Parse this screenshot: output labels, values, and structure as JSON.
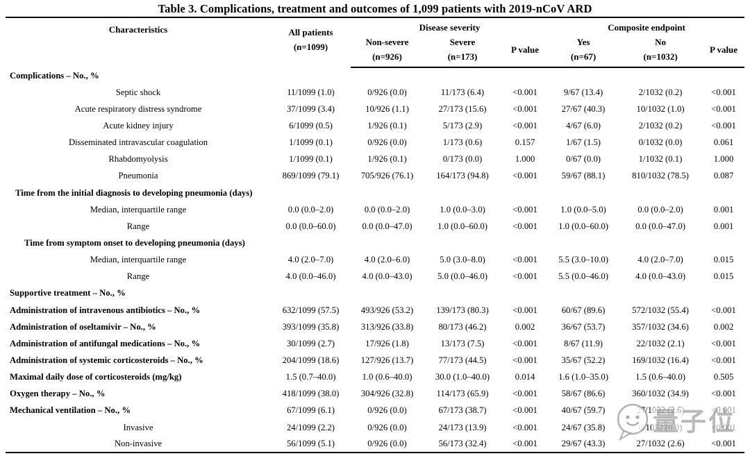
{
  "title": "Table 3. Complications, treatment and outcomes of 1,099 patients with 2019-nCoV ARD",
  "header": {
    "characteristics": "Characteristics",
    "all_patients": "All patients",
    "all_patients_n": "(n=1099)",
    "disease_severity": "Disease severity",
    "composite_endpoint": "Composite endpoint",
    "non_severe": "Non-severe",
    "non_severe_n": "(n=926)",
    "severe": "Severe",
    "severe_n": "(n=173)",
    "p_value_severity": "P value",
    "yes": "Yes",
    "yes_n": "(n=67)",
    "no": "No",
    "no_n": "(n=1032)",
    "p_value_composite": "P value"
  },
  "rows": [
    {
      "label": "Complications – No., %",
      "style": "head1",
      "values": [
        "",
        "",
        "",
        "",
        "",
        "",
        ""
      ]
    },
    {
      "label": "Septic shock",
      "style": "item",
      "values": [
        "11/1099 (1.0)",
        "0/926 (0.0)",
        "11/173 (6.4)",
        "<0.001",
        "9/67 (13.4)",
        "2/1032 (0.2)",
        "<0.001"
      ]
    },
    {
      "label": "Acute respiratory distress syndrome",
      "style": "item",
      "values": [
        "37/1099 (3.4)",
        "10/926 (1.1)",
        "27/173 (15.6)",
        "<0.001",
        "27/67 (40.3)",
        "10/1032 (1.0)",
        "<0.001"
      ]
    },
    {
      "label": "Acute kidney injury",
      "style": "item",
      "values": [
        "6/1099 (0.5)",
        "1/926 (0.1)",
        "5/173 (2.9)",
        "<0.001",
        "4/67 (6.0)",
        "2/1032 (0.2)",
        "<0.001"
      ]
    },
    {
      "label": "Disseminated intravascular coagulation",
      "style": "item",
      "values": [
        "1/1099 (0.1)",
        "0/926 (0.0)",
        "1/173 (0.6)",
        "0.157",
        "1/67 (1.5)",
        "0/1032 (0.0)",
        "0.061"
      ]
    },
    {
      "label": "Rhabdomyolysis",
      "style": "item",
      "values": [
        "1/1099 (0.1)",
        "1/926 (0.1)",
        "0/173 (0.0)",
        "1.000",
        "0/67 (0.0)",
        "1/1032 (0.1)",
        "1.000"
      ]
    },
    {
      "label": "Pneumonia",
      "style": "item",
      "values": [
        "869/1099 (79.1)",
        "705/926 (76.1)",
        "164/173 (94.8)",
        "<0.001",
        "59/67 (88.1)",
        "810/1032 (78.5)",
        "0.087"
      ]
    },
    {
      "label": "Time from the initial diagnosis to developing pneumonia (days)",
      "style": "head2",
      "values": [
        "",
        "",
        "",
        "",
        "",
        "",
        ""
      ]
    },
    {
      "label": "Median, interquartile range",
      "style": "item",
      "values": [
        "0.0 (0.0–2.0)",
        "0.0 (0.0–2.0)",
        "1.0 (0.0–3.0)",
        "<0.001",
        "1.0 (0.0–5.0)",
        "0.0 (0.0–2.0)",
        "0.001"
      ]
    },
    {
      "label": "Range",
      "style": "item",
      "values": [
        "0.0 (0.0–60.0)",
        "0.0 (0.0–47.0)",
        "1.0 (0.0–60.0)",
        "<0.001",
        "1.0 (0.0–60.0)",
        "0.0 (0.0–47.0)",
        "0.001"
      ]
    },
    {
      "label": "Time from symptom onset to developing pneumonia (days)",
      "style": "head3",
      "values": [
        "",
        "",
        "",
        "",
        "",
        "",
        ""
      ]
    },
    {
      "label": "Median, interquartile range",
      "style": "item",
      "values": [
        "4.0 (2.0–7.0)",
        "4.0 (2.0–6.0)",
        "5.0 (3.0–8.0)",
        "<0.001",
        "5.5 (3.0–10.0)",
        "4.0 (2.0–7.0)",
        "0.015"
      ]
    },
    {
      "label": "Range",
      "style": "item",
      "values": [
        "4.0 (0.0–46.0)",
        "4.0 (0.0–43.0)",
        "5.0 (0.0–46.0)",
        "<0.001",
        "5.5 (0.0–46.0)",
        "4.0 (0.0–43.0)",
        "0.015"
      ]
    },
    {
      "label": "Supportive treatment – No., %",
      "style": "head1",
      "values": [
        "",
        "",
        "",
        "",
        "",
        "",
        ""
      ]
    },
    {
      "label": "Administration of intravenous antibiotics – No., %",
      "style": "rowbold",
      "values": [
        "632/1099 (57.5)",
        "493/926 (53.2)",
        "139/173 (80.3)",
        "<0.001",
        "60/67 (89.6)",
        "572/1032 (55.4)",
        "<0.001"
      ]
    },
    {
      "label": "Administration of oseltamivir – No., %",
      "style": "rowbold",
      "values": [
        "393/1099 (35.8)",
        "313/926 (33.8)",
        "80/173 (46.2)",
        "0.002",
        "36/67 (53.7)",
        "357/1032 (34.6)",
        "0.002"
      ]
    },
    {
      "label": "Administration of antifungal medications – No., %",
      "style": "rowbold",
      "values": [
        "30/1099 (2.7)",
        "17/926 (1.8)",
        "13/173 (7.5)",
        "<0.001",
        "8/67 (11.9)",
        "22/1032 (2.1)",
        "<0.001"
      ]
    },
    {
      "label": "Administration of systemic corticosteroids – No., %",
      "style": "rowbold",
      "values": [
        "204/1099 (18.6)",
        "127/926 (13.7)",
        "77/173 (44.5)",
        "<0.001",
        "35/67 (52.2)",
        "169/1032 (16.4)",
        "<0.001"
      ]
    },
    {
      "label": "Maximal daily dose of corticosteroids (mg/kg)",
      "style": "rowbold",
      "values": [
        "1.5 (0.7–40.0)",
        "1.0 (0.6–40.0)",
        "30.0 (1.0–40.0)",
        "0.014",
        "1.6 (1.0–35.0)",
        "1.5 (0.6–40.0)",
        "0.505"
      ]
    },
    {
      "label": "Oxygen therapy – No., %",
      "style": "rowbold",
      "values": [
        "418/1099 (38.0)",
        "304/926 (32.8)",
        "114/173 (65.9)",
        "<0.001",
        "58/67 (86.6)",
        "360/1032 (34.9)",
        "<0.001"
      ]
    },
    {
      "label": "Mechanical ventilation – No., %",
      "style": "rowbold",
      "values": [
        "67/1099 (6.1)",
        "0/926 (0.0)",
        "67/173 (38.7)",
        "<0.001",
        "40/67 (59.7)",
        "27/1032 (2.6)",
        "<0.001"
      ]
    },
    {
      "label": "Invasive",
      "style": "item",
      "values": [
        "24/1099 (2.2)",
        "0/926 (0.0)",
        "24/173 (13.9)",
        "<0.001",
        "24/67 (35.8)",
        "0/1032 (0.0)",
        "<0.001"
      ]
    },
    {
      "label": "Non-invasive",
      "style": "item",
      "values": [
        "56/1099 (5.1)",
        "0/926 (0.0)",
        "56/173 (32.4)",
        "<0.001",
        "29/67 (43.3)",
        "27/1032 (2.6)",
        "<0.001"
      ]
    }
  ],
  "watermark": {
    "text": "量子位",
    "color": "#808080"
  }
}
